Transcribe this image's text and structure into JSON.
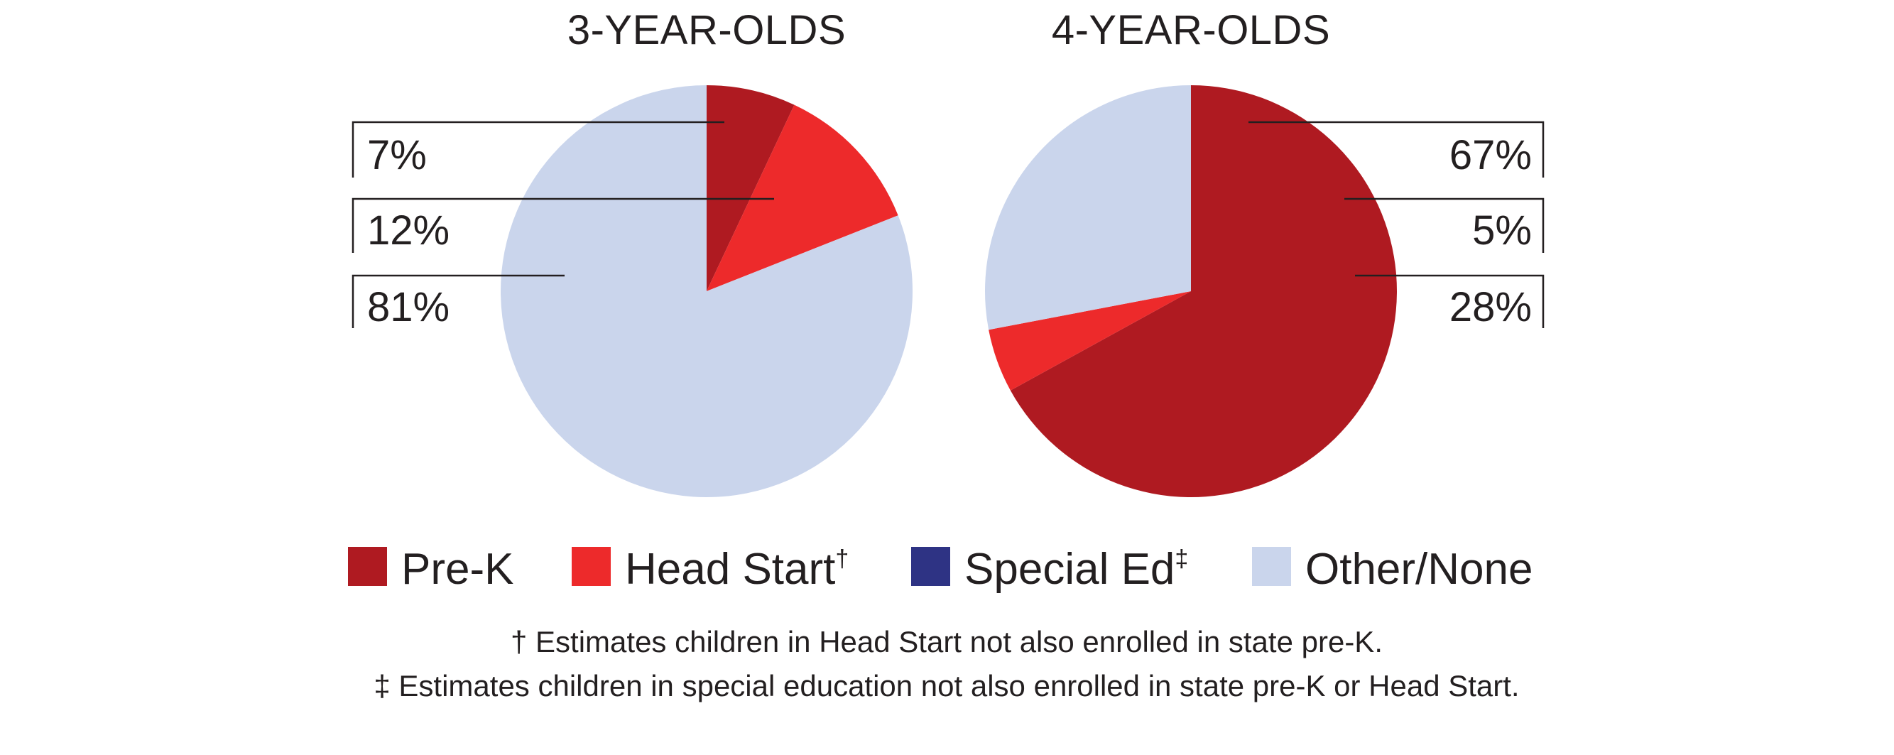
{
  "chart_data": [
    {
      "type": "pie",
      "title": "3-YEAR-OLDS",
      "slices": [
        {
          "category": "Pre-K",
          "value": 7,
          "label": "7%"
        },
        {
          "category": "Head Start",
          "value": 12,
          "label": "12%"
        },
        {
          "category": "Special Ed",
          "value": 0,
          "label": ""
        },
        {
          "category": "Other/None",
          "value": 81,
          "label": "81%"
        }
      ],
      "label_side": "left"
    },
    {
      "type": "pie",
      "title": "4-YEAR-OLDS",
      "slices": [
        {
          "category": "Pre-K",
          "value": 67,
          "label": "67%"
        },
        {
          "category": "Head Start",
          "value": 5,
          "label": "5%"
        },
        {
          "category": "Special Ed",
          "value": 0,
          "label": ""
        },
        {
          "category": "Other/None",
          "value": 28,
          "label": "28%"
        }
      ],
      "label_side": "right"
    }
  ],
  "legend": {
    "placement": "bottom",
    "items": [
      {
        "label": "Pre-K",
        "sup": "",
        "color": "#af1a21"
      },
      {
        "label": "Head Start",
        "sup": "†",
        "color": "#ed2a2b"
      },
      {
        "label": "Special Ed",
        "sup": "‡",
        "color": "#2e3384"
      },
      {
        "label": "Other/None",
        "sup": "",
        "color": "#cad5ec"
      }
    ]
  },
  "footnotes": [
    "† Estimates children in Head Start not also enrolled in state pre-K.",
    "‡ Estimates children in special education not also enrolled in state pre-K or Head Start."
  ]
}
